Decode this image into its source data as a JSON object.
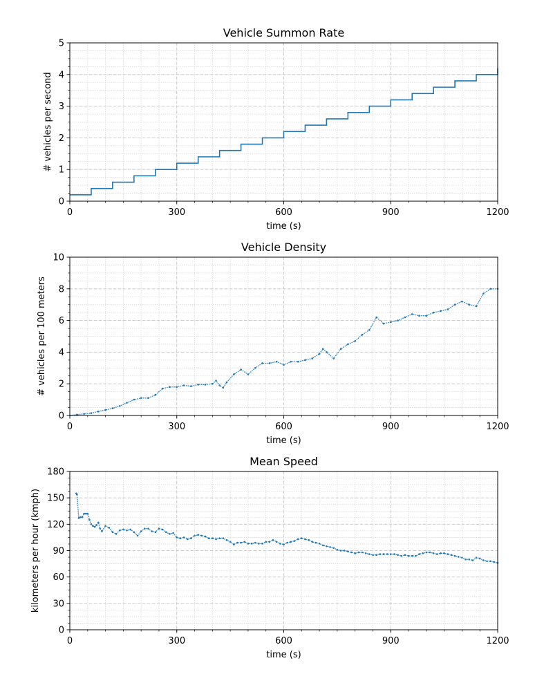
{
  "chart_data": [
    {
      "type": "line",
      "title": "Vehicle Summon Rate",
      "xlabel": "time (s)",
      "ylabel": "# vehicles per second",
      "xlim": [
        0,
        1200
      ],
      "ylim": [
        0,
        5
      ],
      "xticks": [
        0,
        300,
        600,
        900,
        1200
      ],
      "yticks": [
        0,
        1,
        2,
        3,
        4,
        5
      ],
      "y_minor_step": 0.25,
      "grid": true,
      "step": true,
      "color": "#1f77b4",
      "series": [
        {
          "x": [
            0,
            60,
            120,
            180,
            240,
            300,
            360,
            420,
            480,
            540,
            600,
            660,
            720,
            780,
            840,
            900,
            960,
            1020,
            1080,
            1140,
            1200
          ],
          "values": [
            0.2,
            0.4,
            0.6,
            0.8,
            1.0,
            1.2,
            1.4,
            1.6,
            1.8,
            2.0,
            2.2,
            2.4,
            2.6,
            2.8,
            3.0,
            3.2,
            3.4,
            3.6,
            3.8,
            4.0,
            4.2
          ]
        }
      ]
    },
    {
      "type": "scatter",
      "title": "Vehicle Density",
      "xlabel": "time (s)",
      "ylabel": "# vehicles per 100 meters",
      "xlim": [
        0,
        1200
      ],
      "ylim": [
        0,
        10
      ],
      "xticks": [
        0,
        300,
        600,
        900,
        1200
      ],
      "yticks": [
        0,
        2,
        4,
        6,
        8,
        10
      ],
      "y_minor_step": 0.5,
      "grid": true,
      "color": "#1f77b4",
      "series": [
        {
          "x": [
            0,
            20,
            40,
            60,
            80,
            100,
            120,
            140,
            160,
            180,
            200,
            220,
            240,
            260,
            280,
            300,
            320,
            340,
            360,
            380,
            400,
            410,
            420,
            430,
            440,
            460,
            480,
            500,
            520,
            540,
            560,
            580,
            600,
            620,
            640,
            660,
            680,
            700,
            710,
            720,
            740,
            760,
            780,
            800,
            820,
            840,
            860,
            880,
            900,
            920,
            940,
            960,
            980,
            1000,
            1020,
            1040,
            1060,
            1080,
            1100,
            1120,
            1140,
            1160,
            1180,
            1200
          ],
          "values": [
            0,
            0.05,
            0.1,
            0.15,
            0.25,
            0.35,
            0.45,
            0.6,
            0.8,
            1.0,
            1.1,
            1.1,
            1.3,
            1.7,
            1.8,
            1.8,
            1.9,
            1.85,
            1.95,
            1.95,
            2.0,
            2.2,
            1.9,
            1.75,
            2.1,
            2.6,
            2.9,
            2.6,
            3.0,
            3.3,
            3.3,
            3.4,
            3.2,
            3.4,
            3.4,
            3.5,
            3.6,
            3.9,
            4.2,
            4.0,
            3.6,
            4.2,
            4.5,
            4.7,
            5.1,
            5.4,
            6.2,
            5.8,
            5.9,
            6.0,
            6.2,
            6.4,
            6.3,
            6.3,
            6.5,
            6.6,
            6.7,
            7.0,
            7.2,
            7.0,
            6.9,
            7.7,
            8.0,
            8.0
          ]
        }
      ]
    },
    {
      "type": "scatter",
      "title": "Mean Speed",
      "xlabel": "time (s)",
      "ylabel": "kilometers per hour (kmph)",
      "xlim": [
        0,
        1200
      ],
      "ylim": [
        0,
        180
      ],
      "xticks": [
        0,
        300,
        600,
        900,
        1200
      ],
      "yticks": [
        0,
        30,
        60,
        90,
        120,
        150,
        180
      ],
      "y_minor_step": 7.5,
      "grid": true,
      "color": "#1f77b4",
      "series": [
        {
          "x": [
            18,
            20,
            25,
            30,
            35,
            40,
            45,
            50,
            55,
            60,
            65,
            70,
            75,
            80,
            85,
            90,
            100,
            110,
            120,
            130,
            140,
            150,
            160,
            170,
            180,
            190,
            200,
            210,
            220,
            230,
            240,
            250,
            260,
            270,
            280,
            290,
            300,
            310,
            320,
            330,
            340,
            350,
            360,
            370,
            380,
            390,
            400,
            410,
            420,
            430,
            440,
            450,
            460,
            470,
            480,
            490,
            500,
            510,
            520,
            530,
            540,
            550,
            560,
            570,
            580,
            590,
            600,
            610,
            620,
            630,
            640,
            650,
            660,
            670,
            680,
            690,
            700,
            710,
            720,
            730,
            740,
            750,
            760,
            770,
            780,
            790,
            800,
            810,
            820,
            830,
            840,
            850,
            860,
            870,
            880,
            890,
            900,
            910,
            920,
            930,
            940,
            950,
            960,
            970,
            980,
            990,
            1000,
            1010,
            1020,
            1030,
            1040,
            1050,
            1060,
            1070,
            1080,
            1090,
            1100,
            1110,
            1120,
            1130,
            1140,
            1150,
            1160,
            1170,
            1180,
            1190,
            1200
          ],
          "values": [
            155,
            154,
            127,
            128,
            128,
            132,
            132,
            132,
            125,
            120,
            118,
            117,
            119,
            122,
            115,
            112,
            118,
            116,
            111,
            109,
            113,
            114,
            113,
            114,
            111,
            107,
            112,
            115,
            115,
            112,
            111,
            115,
            114,
            111,
            109,
            110,
            105,
            104,
            105,
            103,
            104,
            107,
            108,
            107,
            106,
            104,
            104,
            103,
            104,
            104,
            102,
            100,
            97,
            99,
            99,
            100,
            98,
            98,
            99,
            98,
            98,
            100,
            100,
            102,
            100,
            98,
            97,
            99,
            100,
            101,
            103,
            104,
            103,
            102,
            100,
            99,
            98,
            96,
            95,
            94,
            93,
            91,
            90,
            90,
            89,
            88,
            87,
            88,
            88,
            87,
            86,
            85,
            85,
            86,
            86,
            86,
            86,
            86,
            85,
            84,
            85,
            84,
            84,
            84,
            86,
            87,
            88,
            88,
            87,
            86,
            87,
            87,
            86,
            85,
            84,
            83,
            82,
            80,
            80,
            79,
            82,
            81,
            79,
            78,
            78,
            77,
            76
          ]
        }
      ]
    }
  ]
}
